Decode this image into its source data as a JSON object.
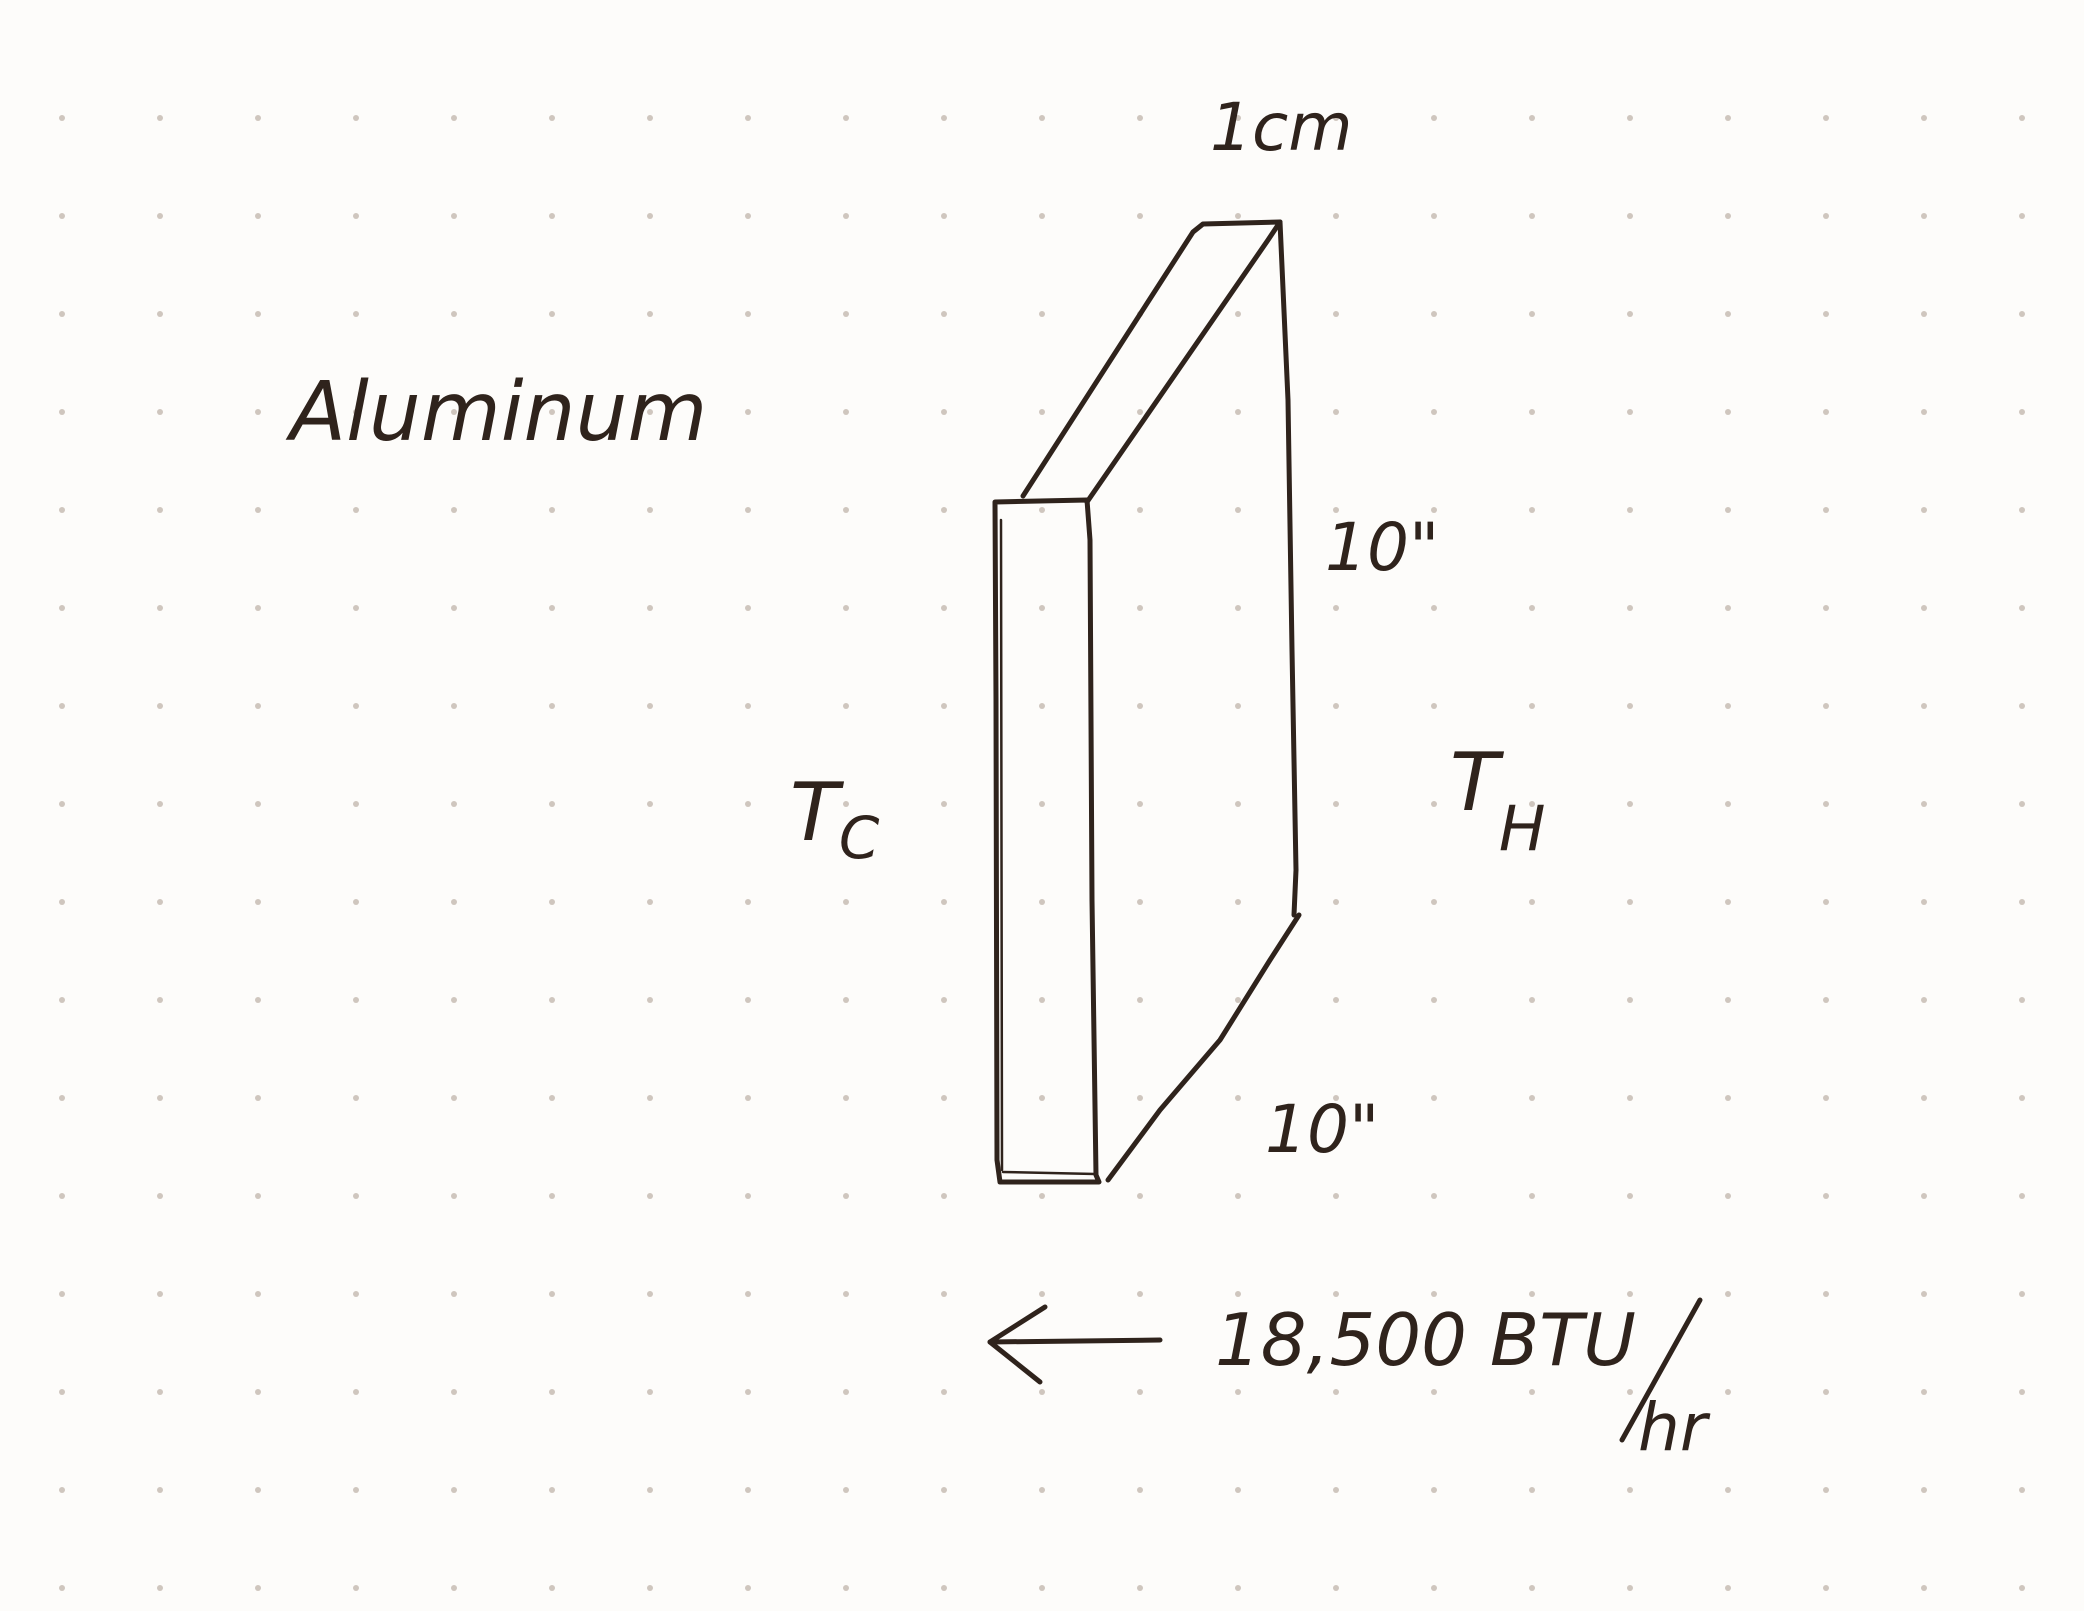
{
  "labels": {
    "material": "Aluminum",
    "thickness": "1cm",
    "height": "10\"",
    "width": "10\"",
    "cold_side_label": "T",
    "cold_side_sub": "C",
    "hot_side_label": "T",
    "hot_side_sub": "H",
    "heat_flow_value": "18,500 BTU",
    "heat_flow_unit": "hr"
  },
  "colors": {
    "ink": "#2f231c",
    "paper": "#fdfcfa",
    "dot": "#cfc6be"
  }
}
